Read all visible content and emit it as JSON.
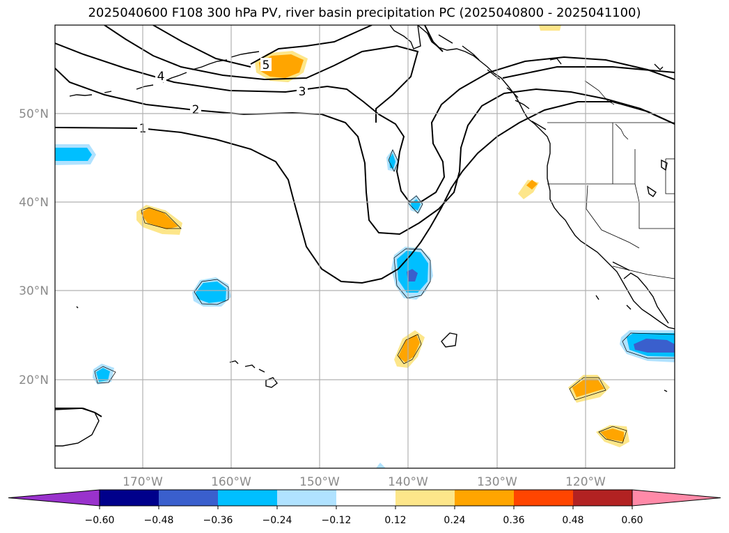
{
  "title": "2025040600 F108 300 hPa PV, river basin precipitation PC (2025040800 - 2025041100)",
  "lon_ticks": [
    "170°W",
    "160°W",
    "150°W",
    "140°W",
    "130°W",
    "120°W"
  ],
  "lat_ticks": [
    "50°N",
    "40°N",
    "30°N",
    "20°N"
  ],
  "pv_contour_labels": [
    "1",
    "2",
    "3",
    "4",
    "5"
  ],
  "colorbar": {
    "ticks": [
      "−0.60",
      "−0.48",
      "−0.36",
      "−0.24",
      "−0.12",
      "0.12",
      "0.24",
      "0.36",
      "0.48",
      "0.60"
    ],
    "colors": [
      "#9932cc",
      "#00008b",
      "#3a5fcd",
      "#00bfff",
      "#b0e2ff",
      "#ffffff",
      "#fde68a",
      "#ffa500",
      "#ff4500",
      "#b22222",
      "#ff8aa8"
    ]
  },
  "palette": {
    "light_blue": "#b0e2ff",
    "blue": "#00bfff",
    "royal_blue": "#3a5fcd",
    "light_yellow": "#fde68a",
    "orange": "#ffa500",
    "grid": "#b0b0b0"
  }
}
